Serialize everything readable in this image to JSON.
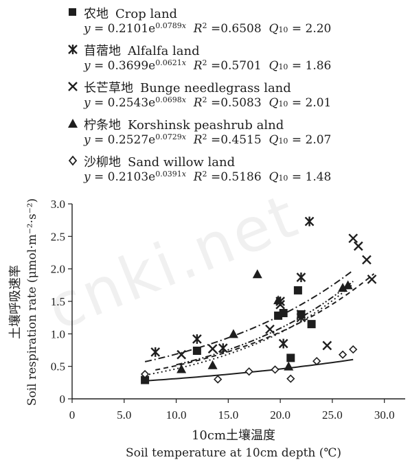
{
  "watermark": "cnki.net",
  "chart_data": {
    "type": "scatter",
    "xlabel_zh": "10cm土壤温度",
    "xlabel_en": "Soil temperature at 10cm depth (℃)",
    "ylabel_zh": "土壤呼吸速率",
    "ylabel_en": "Soil respiration rate (μmol·m⁻²·s⁻²)",
    "xlim": [
      0,
      32
    ],
    "ylim": [
      0,
      3.0
    ],
    "xticks": [
      "0",
      "5.0",
      "10.0",
      "15.0",
      "20.0",
      "25.0",
      "30.0"
    ],
    "xtick_values": [
      0,
      5,
      10,
      15,
      20,
      25,
      30
    ],
    "yticks": [
      "0",
      "0.5",
      "1.0",
      "1.5",
      "2.0",
      "2.5",
      "3.0"
    ],
    "ytick_values": [
      0,
      0.5,
      1.0,
      1.5,
      2.0,
      2.5,
      3.0
    ],
    "series": [
      {
        "name_zh": "农地",
        "name_en": "Crop land",
        "marker": "filled-square",
        "line": "dotted",
        "eq_a": "0.2101",
        "eq_b": "0.0789",
        "r2": "0.6508",
        "q10": "2.20",
        "a": 0.2101,
        "b": 0.0789,
        "fit_range": [
          7,
          27
        ],
        "x": [
          7.0,
          12.0,
          19.8,
          20.3,
          21.0,
          21.7,
          22.0,
          23.0
        ],
        "y": [
          0.29,
          0.74,
          1.28,
          1.32,
          0.63,
          1.67,
          1.3,
          1.15
        ]
      },
      {
        "name_zh": "苜蓿地",
        "name_en": "Alfalfa land",
        "marker": "asterisk",
        "line": "dash-dot",
        "eq_a": "0.3699",
        "eq_b": "0.0621",
        "r2": "0.5701",
        "q10": "1.86",
        "a": 0.3699,
        "b": 0.0621,
        "fit_range": [
          7,
          27
        ],
        "x": [
          8.0,
          12.0,
          14.5,
          20.0,
          20.3,
          22.0,
          22.0,
          22.8
        ],
        "y": [
          0.72,
          0.92,
          0.78,
          1.5,
          0.85,
          1.87,
          1.25,
          2.73
        ]
      },
      {
        "name_zh": "长芒草地",
        "name_en": "Bunge needlegrass land",
        "marker": "cross",
        "line": "dashed",
        "eq_a": "0.2543",
        "eq_b": "0.0698",
        "r2": "0.5083",
        "q10": "2.01",
        "a": 0.2543,
        "b": 0.0698,
        "fit_range": [
          8,
          29
        ],
        "x": [
          10.5,
          13.5,
          19.0,
          20.0,
          22.0,
          24.5,
          27.0,
          27.5,
          28.3,
          28.8
        ],
        "y": [
          0.68,
          0.77,
          1.07,
          1.45,
          1.3,
          0.82,
          2.47,
          2.35,
          2.14,
          1.84
        ]
      },
      {
        "name_zh": "柠条地",
        "name_en": "Korshinsk peashrub alnd",
        "marker": "filled-triangle",
        "line": "dash-dot-dot",
        "eq_a": "0.2527",
        "eq_b": "0.0729",
        "r2": "0.4515",
        "q10": "2.07",
        "a": 0.2527,
        "b": 0.0729,
        "fit_range": [
          10,
          27
        ],
        "x": [
          10.5,
          13.5,
          15.5,
          17.8,
          19.8,
          20.8,
          26.0,
          26.5
        ],
        "y": [
          0.46,
          0.52,
          1.0,
          1.92,
          1.52,
          0.5,
          1.71,
          1.75
        ]
      },
      {
        "name_zh": "沙柳地",
        "name_en": "Sand willow land",
        "marker": "open-diamond",
        "line": "solid",
        "eq_a": "0.2103",
        "eq_b": "0.0391",
        "r2": "0.5186",
        "q10": "1.48",
        "a": 0.2103,
        "b": 0.0391,
        "fit_range": [
          7,
          27
        ],
        "x": [
          7.0,
          14.0,
          17.0,
          19.5,
          21.0,
          23.5,
          26.0,
          27.0
        ],
        "y": [
          0.38,
          0.3,
          0.42,
          0.45,
          0.31,
          0.58,
          0.68,
          0.76
        ]
      }
    ]
  }
}
